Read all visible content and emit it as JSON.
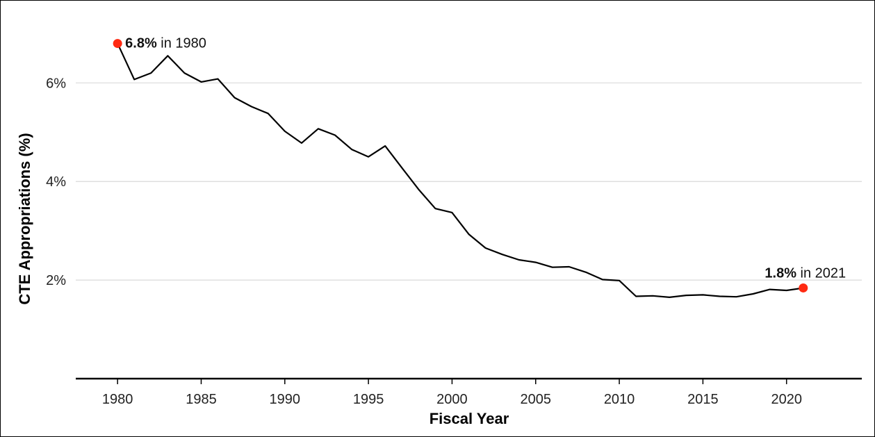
{
  "chart_data": {
    "type": "line",
    "xlabel": "Fiscal Year",
    "ylabel": "CTE Appropriations (%)",
    "xlim": [
      1977.5,
      2024.5
    ],
    "ylim": [
      0,
      7.4
    ],
    "x_ticks": [
      1980,
      1985,
      1990,
      1995,
      2000,
      2005,
      2010,
      2015,
      2020
    ],
    "x_tick_labels": [
      "1980",
      "1985",
      "1990",
      "1995",
      "2000",
      "2005",
      "2010",
      "2015",
      "2020"
    ],
    "y_ticks": [
      2,
      4,
      6
    ],
    "y_tick_labels": [
      "2%",
      "4%",
      "6%"
    ],
    "grid": "horizontal",
    "line_color": "#000000",
    "highlight_color": "#ff2a12",
    "series": [
      {
        "x": [
          1980,
          1981,
          1982,
          1983,
          1984,
          1985,
          1986,
          1987,
          1988,
          1989,
          1990,
          1991,
          1992,
          1993,
          1994,
          1995,
          1996,
          1997,
          1998,
          1999,
          2000,
          2001,
          2002,
          2003,
          2004,
          2005,
          2006,
          2007,
          2008,
          2009,
          2010,
          2011,
          2012,
          2013,
          2014,
          2015,
          2016,
          2017,
          2018,
          2019,
          2020,
          2021
        ],
        "y": [
          6.8,
          6.07,
          6.2,
          6.55,
          6.2,
          6.02,
          6.08,
          5.7,
          5.52,
          5.38,
          5.02,
          4.78,
          5.07,
          4.94,
          4.65,
          4.5,
          4.72,
          4.28,
          3.84,
          3.45,
          3.37,
          2.93,
          2.65,
          2.52,
          2.41,
          2.36,
          2.26,
          2.27,
          2.16,
          2.01,
          1.99,
          1.67,
          1.68,
          1.65,
          1.69,
          1.7,
          1.67,
          1.66,
          1.72,
          1.81,
          1.79,
          1.84
        ]
      }
    ],
    "annotations": [
      {
        "x": 1980,
        "y": 6.8,
        "bold": "6.8%",
        "text": " in 1980"
      },
      {
        "x": 2021,
        "y": 1.84,
        "bold": "1.8%",
        "text": " in 2021"
      }
    ]
  }
}
